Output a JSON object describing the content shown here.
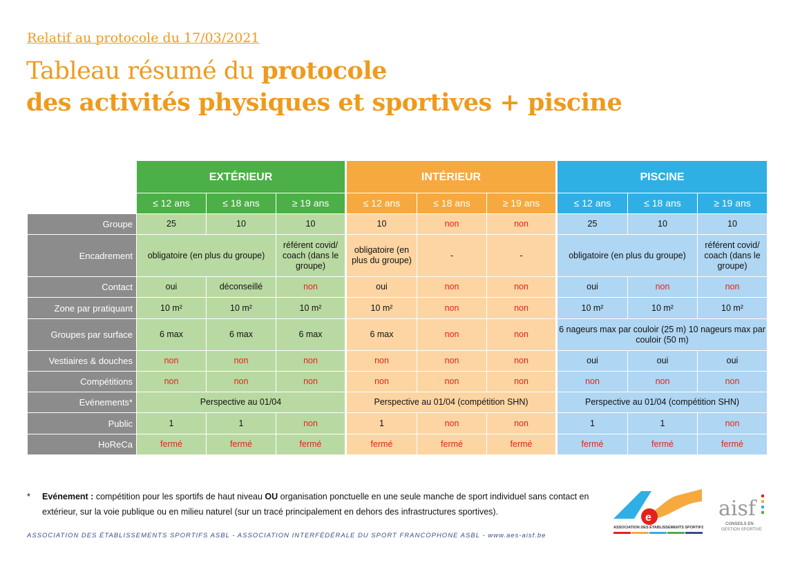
{
  "header": {
    "subtitle": "Relatif au protocole du 17/03/2021",
    "title_light": "Tableau résumé du ",
    "title_bold1": "protocole",
    "title_bold2": "des activités physiques et sportives + piscine"
  },
  "colors": {
    "orange": "#ef9a1d",
    "green": "#4caf47",
    "orange_section": "#f5a93e",
    "blue": "#2fafe4",
    "red_text": "#e3231b",
    "label_grey": "#8c8c8c"
  },
  "table": {
    "sections": [
      {
        "label": "EXTÉRIEUR",
        "tone": "g"
      },
      {
        "label": "INTÉRIEUR",
        "tone": "o"
      },
      {
        "label": "PISCINE",
        "tone": "b"
      }
    ],
    "ages": [
      "≤ 12 ans",
      "≤ 18 ans",
      "≥ 19 ans"
    ],
    "rows": [
      {
        "label": "Groupe",
        "h": 30,
        "cells": [
          [
            {
              "t": "25"
            },
            {
              "t": "10"
            },
            {
              "t": "10"
            }
          ],
          [
            {
              "t": "10"
            },
            {
              "t": "non",
              "r": 1
            },
            {
              "t": "non",
              "r": 1
            }
          ],
          [
            {
              "t": "25"
            },
            {
              "t": "10"
            },
            {
              "t": "10"
            }
          ]
        ]
      },
      {
        "label": "Encadrement",
        "h": 61,
        "cells": [
          [
            {
              "t": "obligatoire  (en plus du groupe)",
              "s": 2
            },
            {
              "t": "référent covid/ coach (dans le groupe)"
            }
          ],
          [
            {
              "t": "obligatoire  (en plus du groupe)"
            },
            {
              "t": "-"
            },
            {
              "t": "-"
            }
          ],
          [
            {
              "t": "obligatoire  (en plus du groupe)",
              "s": 2
            },
            {
              "t": "référent covid/ coach (dans le groupe)"
            }
          ]
        ]
      },
      {
        "label": "Contact",
        "h": 30,
        "cells": [
          [
            {
              "t": "oui"
            },
            {
              "t": "déconseillé"
            },
            {
              "t": "non",
              "r": 1
            }
          ],
          [
            {
              "t": "oui"
            },
            {
              "t": "non",
              "r": 1
            },
            {
              "t": "non",
              "r": 1
            }
          ],
          [
            {
              "t": "oui"
            },
            {
              "t": "non",
              "r": 1
            },
            {
              "t": "non",
              "r": 1
            }
          ]
        ]
      },
      {
        "label": "Zone par pratiquant",
        "h": 31,
        "cells": [
          [
            {
              "t": "10 m²"
            },
            {
              "t": "10 m²"
            },
            {
              "t": "10 m²"
            }
          ],
          [
            {
              "t": "10 m²"
            },
            {
              "t": "non",
              "r": 1
            },
            {
              "t": "non",
              "r": 1
            }
          ],
          [
            {
              "t": "10 m²"
            },
            {
              "t": "10 m²"
            },
            {
              "t": "10 m²"
            }
          ]
        ]
      },
      {
        "label": "Groupes par surface",
        "h": 46,
        "cells": [
          [
            {
              "t": "6 max"
            },
            {
              "t": "6 max"
            },
            {
              "t": "6 max"
            }
          ],
          [
            {
              "t": "6 max"
            },
            {
              "t": "non",
              "r": 1
            },
            {
              "t": "non",
              "r": 1
            }
          ],
          [
            {
              "t": "6 nageurs max par couloir (25 m) 10 nageurs max par couloir (50 m)",
              "s": 3
            }
          ]
        ]
      },
      {
        "label": "Vestiaires & douches",
        "h": 30,
        "cells": [
          [
            {
              "t": "non",
              "r": 1
            },
            {
              "t": "non",
              "r": 1
            },
            {
              "t": "non",
              "r": 1
            }
          ],
          [
            {
              "t": "non",
              "r": 1
            },
            {
              "t": "non",
              "r": 1
            },
            {
              "t": "non",
              "r": 1
            }
          ],
          [
            {
              "t": "oui"
            },
            {
              "t": "oui"
            },
            {
              "t": "oui"
            }
          ]
        ]
      },
      {
        "label": "Compétitions",
        "h": 30,
        "cells": [
          [
            {
              "t": "non",
              "r": 1
            },
            {
              "t": "non",
              "r": 1
            },
            {
              "t": "non",
              "r": 1
            }
          ],
          [
            {
              "t": "non",
              "r": 1
            },
            {
              "t": "non",
              "r": 1
            },
            {
              "t": "non",
              "r": 1
            }
          ],
          [
            {
              "t": "non",
              "r": 1
            },
            {
              "t": "non",
              "r": 1
            },
            {
              "t": "non",
              "r": 1
            }
          ]
        ]
      },
      {
        "label": "Evénements*",
        "h": 30,
        "cells": [
          [
            {
              "t": "Perspective au 01/04",
              "s": 3
            }
          ],
          [
            {
              "t": "Perspective au 01/04 (compétition SHN)",
              "s": 3
            }
          ],
          [
            {
              "t": "Perspective au 01/04 (compétition SHN)",
              "s": 3
            }
          ]
        ]
      },
      {
        "label": "Public",
        "h": 31,
        "cells": [
          [
            {
              "t": "1"
            },
            {
              "t": "1"
            },
            {
              "t": "non",
              "r": 1
            }
          ],
          [
            {
              "t": "1"
            },
            {
              "t": "non",
              "r": 1
            },
            {
              "t": "non",
              "r": 1
            }
          ],
          [
            {
              "t": "1"
            },
            {
              "t": "1"
            },
            {
              "t": "non",
              "r": 1
            }
          ]
        ]
      },
      {
        "label": "HoReCa",
        "h": 30,
        "cells": [
          [
            {
              "t": "fermé",
              "r": 1
            },
            {
              "t": "fermé",
              "r": 1
            },
            {
              "t": "fermé",
              "r": 1
            }
          ],
          [
            {
              "t": "fermé",
              "r": 1
            },
            {
              "t": "fermé",
              "r": 1
            },
            {
              "t": "fermé",
              "r": 1
            }
          ],
          [
            {
              "t": "fermé",
              "r": 1
            },
            {
              "t": "fermé",
              "r": 1
            },
            {
              "t": "fermé",
              "r": 1
            }
          ]
        ]
      }
    ]
  },
  "footnote": {
    "star": "*",
    "term": "Evénement :",
    "part1": " compétition pour les sportifs de haut niveau ",
    "ou": "OU",
    "part2": " organisation ponctuelle en une seule manche de sport individuel sans contact en extérieur, sur la voie publique ou en milieu naturel (sur un tracé principalement en dehors des infrastructures sportives)."
  },
  "address": {
    "text": "ASSOCIATION DES ÉTABLISSEMENTS SPORTIFS ASBL - ASSOCIATION INTERFÉDÉRALE DU SPORT FRANCOPHONE ASBL - ",
    "link": "www.aes-aisf.be"
  },
  "logos": {
    "aes": "Association des établissements sportifs",
    "aisf": "aisf",
    "aisf_tag": "Conseils en gestion sportive"
  }
}
